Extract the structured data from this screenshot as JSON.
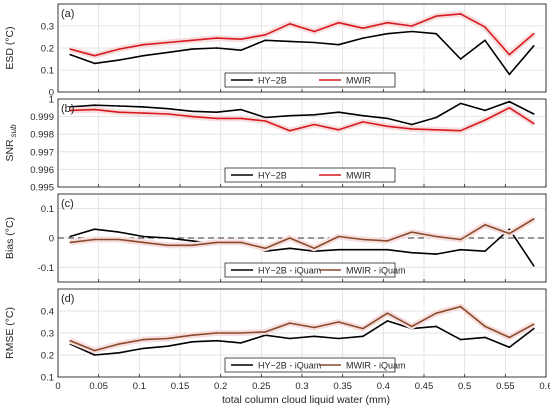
{
  "figure": {
    "xlabel": "total column cloud liquid water (mm)",
    "xlim": [
      0,
      0.6
    ],
    "xticks": [
      "0",
      "0.05",
      "0.1",
      "0.15",
      "0.2",
      "0.25",
      "0.3",
      "0.35",
      "0.4",
      "0.45",
      "0.5",
      "0.55",
      "0.6"
    ]
  },
  "colors": {
    "hy2b": "#000000",
    "mwir": "#d9191e",
    "mwir_iquam": "#8b4a2b",
    "shade": "#f7dede",
    "grid": "#dedede",
    "zero_line": "#333333"
  },
  "chart_data": [
    {
      "type": "line",
      "panel_label": "(a)",
      "ylabel": "ESD (°C)",
      "ylim": [
        0,
        0.4
      ],
      "yticks": [
        "0",
        "0.1",
        "0.2",
        "0.3"
      ],
      "legend_position": "lower-center",
      "x": [
        0.015,
        0.045,
        0.075,
        0.105,
        0.135,
        0.165,
        0.195,
        0.225,
        0.255,
        0.285,
        0.315,
        0.345,
        0.375,
        0.405,
        0.435,
        0.465,
        0.495,
        0.525,
        0.555,
        0.585
      ],
      "series": [
        {
          "name": "HY−2B",
          "color": "#000000",
          "values": [
            0.17,
            0.13,
            0.145,
            0.165,
            0.18,
            0.195,
            0.2,
            0.19,
            0.235,
            0.23,
            0.225,
            0.215,
            0.245,
            0.265,
            0.275,
            0.265,
            0.15,
            0.235,
            0.08,
            0.21
          ]
        },
        {
          "name": "MWIR",
          "color": "#d9191e",
          "values": [
            0.195,
            0.165,
            0.195,
            0.215,
            0.225,
            0.235,
            0.245,
            0.24,
            0.26,
            0.31,
            0.275,
            0.315,
            0.29,
            0.315,
            0.3,
            0.345,
            0.355,
            0.295,
            0.17,
            0.265
          ]
        }
      ]
    },
    {
      "type": "line",
      "panel_label": "(b)",
      "ylabel": "SNR",
      "ylabel_sub": "sub",
      "ylim": [
        0.995,
        1.0
      ],
      "yticks": [
        "0.995",
        "0.996",
        "0.997",
        "0.998",
        "0.999",
        "1"
      ],
      "legend_position": "lower-center",
      "x": [
        0.015,
        0.045,
        0.075,
        0.105,
        0.135,
        0.165,
        0.195,
        0.225,
        0.255,
        0.285,
        0.315,
        0.345,
        0.375,
        0.405,
        0.435,
        0.465,
        0.495,
        0.525,
        0.555,
        0.585
      ],
      "series": [
        {
          "name": "HY−2B",
          "color": "#000000",
          "values": [
            0.99955,
            0.99965,
            0.9996,
            0.99955,
            0.99945,
            0.9993,
            0.99925,
            0.9994,
            0.99895,
            0.99905,
            0.9991,
            0.99925,
            0.99905,
            0.9989,
            0.99855,
            0.99895,
            0.99975,
            0.99935,
            0.99985,
            0.99915
          ]
        },
        {
          "name": "MWIR",
          "color": "#d9191e",
          "values": [
            0.99935,
            0.9994,
            0.99925,
            0.9992,
            0.99915,
            0.999,
            0.9989,
            0.9989,
            0.99875,
            0.9982,
            0.99855,
            0.99825,
            0.9987,
            0.99845,
            0.9983,
            0.99825,
            0.9982,
            0.9988,
            0.9995,
            0.9986
          ]
        }
      ]
    },
    {
      "type": "line",
      "panel_label": "(c)",
      "ylabel": "Bias (°C)",
      "ylim": [
        -0.15,
        0.15
      ],
      "yticks": [
        "-0.1",
        "0",
        "0.1"
      ],
      "legend_position": "lower-center",
      "zero_line": true,
      "x": [
        0.015,
        0.045,
        0.075,
        0.105,
        0.135,
        0.165,
        0.195,
        0.225,
        0.255,
        0.285,
        0.315,
        0.345,
        0.375,
        0.405,
        0.435,
        0.465,
        0.495,
        0.525,
        0.555,
        0.585
      ],
      "series": [
        {
          "name": "HY−2B - iQuam",
          "color": "#000000",
          "values": [
            0.005,
            0.03,
            0.02,
            0.005,
            0.0,
            -0.01,
            -0.02,
            -0.01,
            -0.045,
            -0.035,
            -0.045,
            -0.04,
            -0.04,
            -0.04,
            -0.05,
            -0.055,
            -0.04,
            -0.045,
            0.03,
            -0.095
          ]
        },
        {
          "name": "MWIR - iQuam",
          "color": "#8b4a2b",
          "values": [
            -0.015,
            -0.005,
            -0.005,
            -0.015,
            -0.025,
            -0.025,
            -0.015,
            -0.015,
            -0.035,
            0.0,
            -0.035,
            0.005,
            -0.005,
            -0.01,
            0.02,
            0.005,
            -0.005,
            0.045,
            0.015,
            0.065
          ]
        }
      ]
    },
    {
      "type": "line",
      "panel_label": "(d)",
      "ylabel": "RMSE (°C)",
      "ylim": [
        0.1,
        0.5
      ],
      "yticks": [
        "0.1",
        "0.2",
        "0.3",
        "0.4"
      ],
      "legend_position": "lower-center",
      "x": [
        0.015,
        0.045,
        0.075,
        0.105,
        0.135,
        0.165,
        0.195,
        0.225,
        0.255,
        0.285,
        0.315,
        0.345,
        0.375,
        0.405,
        0.435,
        0.465,
        0.495,
        0.525,
        0.555,
        0.585
      ],
      "series": [
        {
          "name": "HY−2B - iQuam",
          "color": "#000000",
          "values": [
            0.25,
            0.2,
            0.21,
            0.23,
            0.24,
            0.26,
            0.265,
            0.255,
            0.29,
            0.275,
            0.285,
            0.275,
            0.285,
            0.355,
            0.32,
            0.33,
            0.27,
            0.28,
            0.235,
            0.32
          ]
        },
        {
          "name": "MWIR - iQuam",
          "color": "#8b4a2b",
          "values": [
            0.265,
            0.22,
            0.25,
            0.27,
            0.275,
            0.29,
            0.3,
            0.3,
            0.305,
            0.345,
            0.325,
            0.35,
            0.32,
            0.39,
            0.33,
            0.39,
            0.42,
            0.33,
            0.28,
            0.34
          ]
        }
      ]
    }
  ]
}
